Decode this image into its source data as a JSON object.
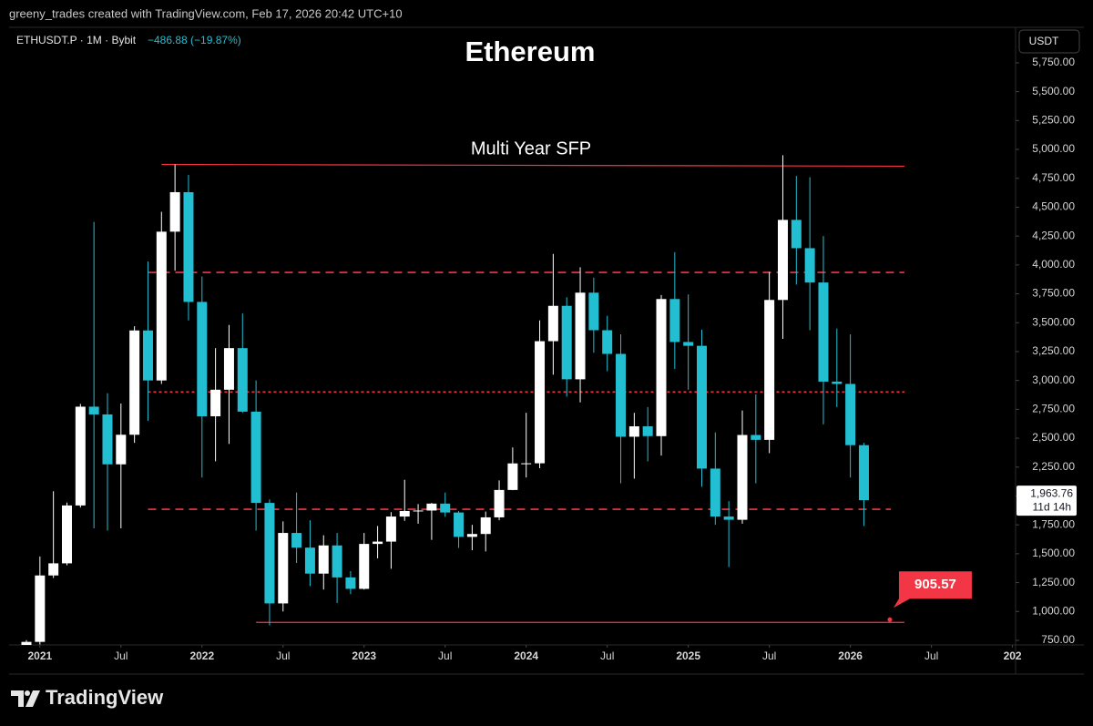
{
  "header": {
    "credit": "greeny_trades created with TradingView.com, Feb 17, 2026 20:42 UTC+10"
  },
  "chart_data": {
    "type": "candlestick",
    "title": "Ethereum",
    "symbol": "ETHUSDT.P · 1M · Bybit",
    "change": "−486.88 (−19.87%)",
    "currency": "USDT",
    "annotation": "Multi Year SFP",
    "up_color": "#ffffff",
    "down_color": "#22bfd3",
    "categories": [
      "2020-12",
      "2021-01",
      "2021-02",
      "2021-03",
      "2021-04",
      "2021-05",
      "2021-06",
      "2021-07",
      "2021-08",
      "2021-09",
      "2021-10",
      "2021-11",
      "2021-12",
      "2022-01",
      "2022-02",
      "2022-03",
      "2022-04",
      "2022-05",
      "2022-06",
      "2022-07",
      "2022-08",
      "2022-09",
      "2022-10",
      "2022-11",
      "2022-12",
      "2023-01",
      "2023-02",
      "2023-03",
      "2023-04",
      "2023-05",
      "2023-06",
      "2023-07",
      "2023-08",
      "2023-09",
      "2023-10",
      "2023-11",
      "2023-12",
      "2024-01",
      "2024-02",
      "2024-03",
      "2024-04",
      "2024-05",
      "2024-06",
      "2024-07",
      "2024-08",
      "2024-09",
      "2024-10",
      "2024-11",
      "2024-12",
      "2025-01",
      "2025-02",
      "2025-03",
      "2025-04",
      "2025-05",
      "2025-06",
      "2025-07",
      "2025-08",
      "2025-09",
      "2025-10",
      "2025-11",
      "2025-12",
      "2026-01",
      "2026-02"
    ],
    "open": [
      616,
      737,
      1312,
      1417,
      1918,
      2773,
      2706,
      2274,
      2530,
      3433,
      3000,
      4288,
      4630,
      3680,
      2690,
      2920,
      3280,
      2730,
      1940,
      1070,
      1680,
      1553,
      1328,
      1572,
      1295,
      1196,
      1585,
      1605,
      1822,
      1870,
      1874,
      1934,
      1857,
      1646,
      1671,
      1815,
      2052,
      2282,
      2283,
      3340,
      3646,
      3010,
      3760,
      3435,
      3230,
      2513,
      2603,
      2518,
      3705,
      3333,
      3300,
      2237,
      1822,
      1794,
      2528,
      2486,
      3697,
      4390,
      4145,
      3848,
      2990,
      2970,
      2440
    ],
    "high": [
      752,
      1476,
      2041,
      1943,
      2797,
      4372,
      2890,
      2800,
      3470,
      4030,
      4460,
      4870,
      4780,
      3900,
      3280,
      3480,
      3580,
      3000,
      1970,
      1780,
      2030,
      1790,
      1660,
      1680,
      1350,
      1680,
      1740,
      1860,
      2140,
      1930,
      1940,
      2030,
      1870,
      1750,
      1865,
      2135,
      2420,
      2720,
      3520,
      4095,
      3720,
      3980,
      3890,
      3560,
      3400,
      2720,
      2770,
      3740,
      4110,
      3745,
      3440,
      2550,
      1955,
      2740,
      2880,
      3940,
      4950,
      4770,
      4760,
      4250,
      3450,
      3400,
      2460
    ],
    "low": [
      535,
      714,
      1290,
      1400,
      1900,
      1720,
      1700,
      1720,
      2460,
      2650,
      2970,
      3950,
      3520,
      2160,
      2300,
      2450,
      2720,
      1700,
      880,
      1000,
      1420,
      1220,
      1190,
      1073,
      1150,
      1190,
      1460,
      1370,
      1785,
      1760,
      1620,
      1820,
      1550,
      1530,
      1520,
      1790,
      2050,
      2160,
      2240,
      3050,
      2860,
      2810,
      3240,
      3080,
      2110,
      2150,
      2300,
      2350,
      3100,
      2920,
      2080,
      1750,
      1385,
      1760,
      2110,
      2370,
      3360,
      3830,
      3435,
      2620,
      2770,
      2160,
      1740
    ],
    "close": [
      737,
      1312,
      1417,
      1918,
      2773,
      2706,
      2274,
      2530,
      3433,
      3000,
      4288,
      4630,
      3680,
      2690,
      2920,
      3280,
      2730,
      1940,
      1070,
      1680,
      1553,
      1328,
      1572,
      1295,
      1196,
      1585,
      1605,
      1822,
      1870,
      1874,
      1934,
      1857,
      1646,
      1671,
      1815,
      2052,
      2282,
      2283,
      3340,
      3646,
      3010,
      3760,
      3435,
      3230,
      2513,
      2603,
      2518,
      3705,
      3333,
      3300,
      2237,
      1822,
      1794,
      2528,
      2486,
      3697,
      4390,
      4145,
      3848,
      2990,
      2970,
      2440,
      1963.76
    ],
    "ylim": [
      750,
      6057
    ],
    "yticks": [
      {
        "value": 750,
        "label": "750.00"
      },
      {
        "value": 1000,
        "label": "1,000.00"
      },
      {
        "value": 1250,
        "label": "1,250.00"
      },
      {
        "value": 1500,
        "label": "1,500.00"
      },
      {
        "value": 1750,
        "label": "1,750.00"
      },
      {
        "value": 2000,
        "label": "2,000.00"
      },
      {
        "value": 2250,
        "label": "2,250.00"
      },
      {
        "value": 2500,
        "label": "2,500.00"
      },
      {
        "value": 2750,
        "label": "2,750.00"
      },
      {
        "value": 3000,
        "label": "3,000.00"
      },
      {
        "value": 3250,
        "label": "3,250.00"
      },
      {
        "value": 3500,
        "label": "3,500.00"
      },
      {
        "value": 3750,
        "label": "3,750.00"
      },
      {
        "value": 4000,
        "label": "4,000.00"
      },
      {
        "value": 4250,
        "label": "4,250.00"
      },
      {
        "value": 4500,
        "label": "4,500.00"
      },
      {
        "value": 4750,
        "label": "4,750.00"
      },
      {
        "value": 5000,
        "label": "5,000.00"
      },
      {
        "value": 5250,
        "label": "5,250.00"
      },
      {
        "value": 5500,
        "label": "5,500.00"
      },
      {
        "value": 5750,
        "label": "5,750.00"
      }
    ],
    "xticks": [
      {
        "value": "2021-01",
        "label": "2021"
      },
      {
        "value": "2021-07",
        "label": "Jul"
      },
      {
        "value": "2022-01",
        "label": "2022"
      },
      {
        "value": "2022-07",
        "label": "Jul"
      },
      {
        "value": "2023-01",
        "label": "2023"
      },
      {
        "value": "2023-07",
        "label": "Jul"
      },
      {
        "value": "2024-01",
        "label": "2024"
      },
      {
        "value": "2024-07",
        "label": "Jul"
      },
      {
        "value": "2025-01",
        "label": "2025"
      },
      {
        "value": "2025-07",
        "label": "Jul"
      },
      {
        "value": "2026-01",
        "label": "2026"
      },
      {
        "value": "2026-07",
        "label": "Jul"
      },
      {
        "value": "2027-01",
        "label": "202"
      }
    ],
    "lines": [
      {
        "start": "2021-10",
        "end": "2026-05",
        "values": [
          4870,
          4855
        ],
        "style": "solid"
      },
      {
        "start": "2021-09",
        "end": "2026-05",
        "values": [
          3935,
          3935
        ],
        "style": "dashed"
      },
      {
        "start": "2021-09",
        "end": "2026-05",
        "values": [
          2900,
          2900
        ],
        "style": "dotted"
      },
      {
        "start": "2021-09",
        "end": "2026-04",
        "values": [
          1885,
          1885
        ],
        "style": "dashed"
      },
      {
        "start": "2022-05",
        "end": "2026-05",
        "values": [
          905.57,
          905.57
        ],
        "style": "solid"
      }
    ],
    "last_price": {
      "value": 1963.76,
      "label": "1,963.76"
    },
    "countdown": "11d 14h"
  },
  "footer": {
    "brand": "TradingView"
  }
}
